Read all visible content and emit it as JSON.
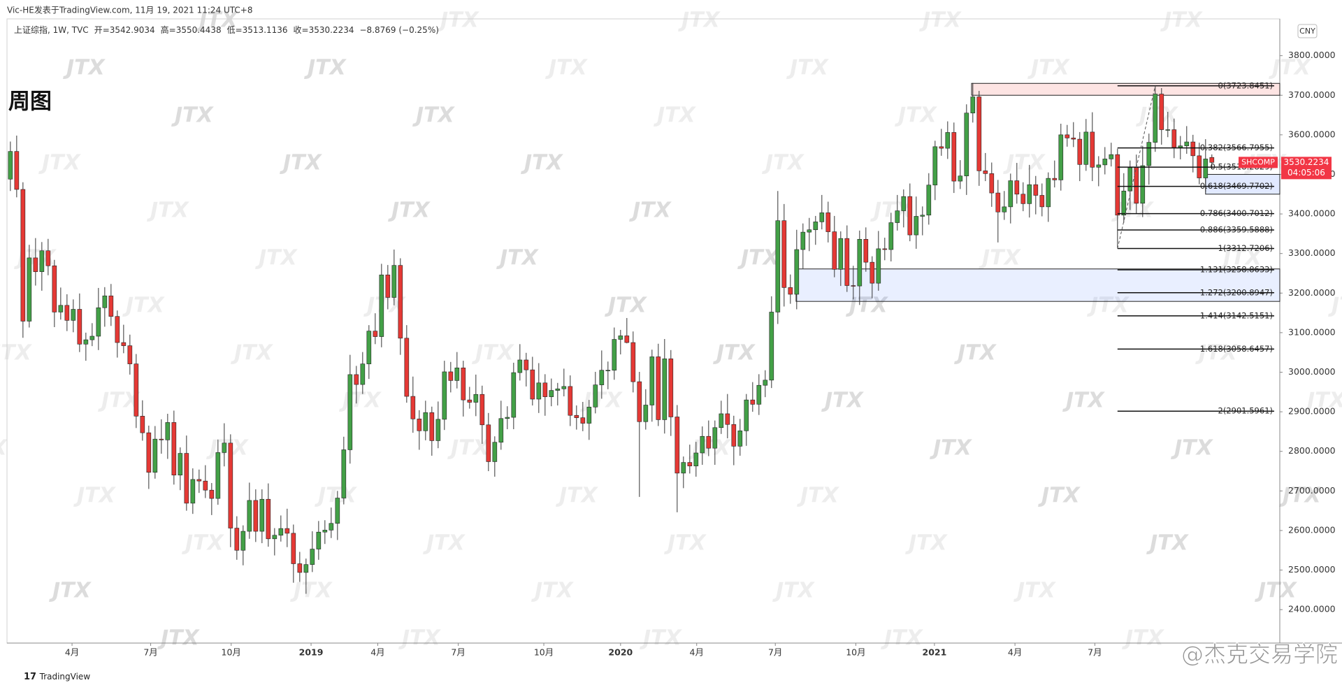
{
  "header": "Vic-HE发表于TradingView.com, 11月 19, 2021 11:24 UTC+8",
  "watermark": "JTX",
  "brand": "TradingView",
  "credit": "@杰克交易学院",
  "chart_data": {
    "type": "candlestick",
    "title": "周图",
    "legend": [
      "上证综指, 1W, TVC",
      "开=3542.9034",
      "高=3550.4438",
      "低=3513.1136",
      "收=3530.2234",
      "−8.8769 (−0.25%)"
    ],
    "currency": "CNY",
    "ticker": "SHCOMP",
    "last_price_label": "3530.2234",
    "countdown": "04:05:06",
    "up_color": "#43a047",
    "down_color": "#e53935",
    "wick_color": "#333333",
    "ohlc": [
      [
        3488,
        3583,
        3458,
        3558
      ],
      [
        3558,
        3598,
        3442,
        3462
      ],
      [
        3462,
        3480,
        3087,
        3129
      ],
      [
        3129,
        3322,
        3113,
        3289
      ],
      [
        3289,
        3339,
        3219,
        3254
      ],
      [
        3254,
        3329,
        3206,
        3307
      ],
      [
        3307,
        3337,
        3245,
        3269
      ],
      [
        3269,
        3284,
        3114,
        3152
      ],
      [
        3152,
        3214,
        3133,
        3169
      ],
      [
        3169,
        3197,
        3104,
        3131
      ],
      [
        3131,
        3184,
        3101,
        3159
      ],
      [
        3159,
        3199,
        3051,
        3071
      ],
      [
        3071,
        3100,
        3029,
        3082
      ],
      [
        3082,
        3124,
        3066,
        3091
      ],
      [
        3091,
        3213,
        3056,
        3163
      ],
      [
        3163,
        3215,
        3115,
        3193
      ],
      [
        3193,
        3223,
        3117,
        3141
      ],
      [
        3141,
        3156,
        3037,
        3075
      ],
      [
        3075,
        3120,
        3048,
        3067
      ],
      [
        3067,
        3095,
        2994,
        3021
      ],
      [
        3021,
        3046,
        2859,
        2889
      ],
      [
        2889,
        2929,
        2827,
        2847
      ],
      [
        2847,
        2865,
        2705,
        2747
      ],
      [
        2747,
        2864,
        2731,
        2831
      ],
      [
        2831,
        2881,
        2794,
        2829
      ],
      [
        2829,
        2895,
        2781,
        2873
      ],
      [
        2873,
        2903,
        2716,
        2740
      ],
      [
        2740,
        2810,
        2702,
        2795
      ],
      [
        2795,
        2840,
        2650,
        2669
      ],
      [
        2669,
        2757,
        2642,
        2729
      ],
      [
        2729,
        2754,
        2695,
        2725
      ],
      [
        2725,
        2765,
        2682,
        2702
      ],
      [
        2702,
        2720,
        2639,
        2681
      ],
      [
        2681,
        2830,
        2665,
        2797
      ],
      [
        2797,
        2871,
        2762,
        2821
      ],
      [
        2821,
        2843,
        2558,
        2606
      ],
      [
        2606,
        2636,
        2526,
        2550
      ],
      [
        2550,
        2613,
        2512,
        2598
      ],
      [
        2598,
        2721,
        2579,
        2676
      ],
      [
        2676,
        2704,
        2571,
        2598
      ],
      [
        2598,
        2704,
        2568,
        2679
      ],
      [
        2679,
        2719,
        2559,
        2579
      ],
      [
        2579,
        2606,
        2537,
        2588
      ],
      [
        2588,
        2638,
        2572,
        2605
      ],
      [
        2605,
        2655,
        2558,
        2593
      ],
      [
        2593,
        2615,
        2468,
        2516
      ],
      [
        2516,
        2546,
        2470,
        2494
      ],
      [
        2494,
        2529,
        2440,
        2514
      ],
      [
        2514,
        2598,
        2495,
        2553
      ],
      [
        2553,
        2624,
        2526,
        2596
      ],
      [
        2596,
        2626,
        2566,
        2601
      ],
      [
        2601,
        2658,
        2581,
        2618
      ],
      [
        2618,
        2700,
        2576,
        2682
      ],
      [
        2682,
        2837,
        2666,
        2804
      ],
      [
        2804,
        3044,
        2769,
        2994
      ],
      [
        2994,
        3016,
        2921,
        2969
      ],
      [
        2969,
        3051,
        2945,
        3021
      ],
      [
        3021,
        3119,
        2983,
        3104
      ],
      [
        3104,
        3149,
        3071,
        3090
      ],
      [
        3090,
        3274,
        3063,
        3246
      ],
      [
        3246,
        3271,
        3159,
        3189
      ],
      [
        3189,
        3310,
        3169,
        3270
      ],
      [
        3270,
        3288,
        3044,
        3086
      ],
      [
        3086,
        3119,
        2923,
        2939
      ],
      [
        2939,
        2989,
        2847,
        2882
      ],
      [
        2882,
        2904,
        2804,
        2852
      ],
      [
        2852,
        2928,
        2828,
        2898
      ],
      [
        2898,
        2913,
        2789,
        2827
      ],
      [
        2827,
        2926,
        2808,
        2881
      ],
      [
        2881,
        3029,
        2854,
        3001
      ],
      [
        3001,
        3026,
        2949,
        2979
      ],
      [
        2979,
        3051,
        2959,
        3011
      ],
      [
        3011,
        3029,
        2888,
        2930
      ],
      [
        2930,
        2963,
        2908,
        2924
      ],
      [
        2924,
        2994,
        2889,
        2944
      ],
      [
        2944,
        2966,
        2819,
        2867
      ],
      [
        2867,
        2897,
        2750,
        2774
      ],
      [
        2774,
        2838,
        2736,
        2823
      ],
      [
        2823,
        2928,
        2804,
        2883
      ],
      [
        2883,
        2914,
        2856,
        2886
      ],
      [
        2886,
        3024,
        2856,
        2999
      ],
      [
        2999,
        3071,
        2979,
        3031
      ],
      [
        3031,
        3049,
        2964,
        3006
      ],
      [
        3006,
        3039,
        2916,
        2932
      ],
      [
        2932,
        3023,
        2897,
        2973
      ],
      [
        2973,
        2995,
        2890,
        2938
      ],
      [
        2938,
        2984,
        2914,
        2954
      ],
      [
        2954,
        2973,
        2916,
        2958
      ],
      [
        2958,
        3009,
        2939,
        2964
      ],
      [
        2964,
        2992,
        2864,
        2891
      ],
      [
        2891,
        2916,
        2855,
        2885
      ],
      [
        2885,
        2925,
        2851,
        2871
      ],
      [
        2871,
        2930,
        2829,
        2912
      ],
      [
        2912,
        3001,
        2896,
        2968
      ],
      [
        2968,
        3055,
        2933,
        3005
      ],
      [
        3005,
        3027,
        2957,
        3005
      ],
      [
        3005,
        3113,
        2981,
        3083
      ],
      [
        3083,
        3107,
        3045,
        3092
      ],
      [
        3092,
        3137,
        3073,
        3075
      ],
      [
        3075,
        3103,
        2949,
        2976
      ],
      [
        2976,
        3001,
        2685,
        2875
      ],
      [
        2875,
        2957,
        2855,
        2917
      ],
      [
        2917,
        3057,
        2875,
        3039
      ],
      [
        3039,
        3072,
        2864,
        2880
      ],
      [
        2880,
        3084,
        2845,
        3034
      ],
      [
        3034,
        3056,
        2839,
        2887
      ],
      [
        2887,
        2917,
        2646,
        2745
      ],
      [
        2745,
        2787,
        2707,
        2772
      ],
      [
        2772,
        2817,
        2744,
        2763
      ],
      [
        2763,
        2824,
        2736,
        2796
      ],
      [
        2796,
        2863,
        2766,
        2838
      ],
      [
        2838,
        2878,
        2788,
        2808
      ],
      [
        2808,
        2878,
        2766,
        2860
      ],
      [
        2860,
        2928,
        2844,
        2895
      ],
      [
        2895,
        2945,
        2833,
        2868
      ],
      [
        2868,
        2890,
        2765,
        2813
      ],
      [
        2813,
        2882,
        2789,
        2852
      ],
      [
        2852,
        2945,
        2814,
        2930
      ],
      [
        2930,
        2975,
        2900,
        2919
      ],
      [
        2919,
        2995,
        2892,
        2967
      ],
      [
        2967,
        3005,
        2937,
        2980
      ],
      [
        2980,
        3192,
        2960,
        3152
      ],
      [
        3152,
        3458,
        3122,
        3383
      ],
      [
        3383,
        3425,
        3166,
        3214
      ],
      [
        3214,
        3247,
        3173,
        3197
      ],
      [
        3197,
        3360,
        3159,
        3310
      ],
      [
        3310,
        3376,
        3262,
        3354
      ],
      [
        3354,
        3390,
        3306,
        3360
      ],
      [
        3360,
        3395,
        3322,
        3380
      ],
      [
        3380,
        3448,
        3361,
        3403
      ],
      [
        3403,
        3431,
        3328,
        3355
      ],
      [
        3355,
        3395,
        3240,
        3260
      ],
      [
        3260,
        3356,
        3218,
        3338
      ],
      [
        3338,
        3371,
        3203,
        3219
      ],
      [
        3219,
        3269,
        3184,
        3218
      ],
      [
        3218,
        3358,
        3170,
        3336
      ],
      [
        3336,
        3366,
        3254,
        3278
      ],
      [
        3278,
        3293,
        3187,
        3225
      ],
      [
        3225,
        3357,
        3206,
        3312
      ],
      [
        3312,
        3340,
        3283,
        3310
      ],
      [
        3310,
        3403,
        3280,
        3378
      ],
      [
        3378,
        3448,
        3358,
        3408
      ],
      [
        3408,
        3462,
        3366,
        3444
      ],
      [
        3444,
        3477,
        3331,
        3347
      ],
      [
        3347,
        3444,
        3312,
        3394
      ],
      [
        3394,
        3419,
        3346,
        3397
      ],
      [
        3397,
        3503,
        3373,
        3473
      ],
      [
        3473,
        3585,
        3435,
        3570
      ],
      [
        3570,
        3615,
        3547,
        3566
      ],
      [
        3566,
        3634,
        3539,
        3606
      ],
      [
        3606,
        3631,
        3453,
        3483
      ],
      [
        3483,
        3536,
        3463,
        3496
      ],
      [
        3496,
        3677,
        3448,
        3655
      ],
      [
        3655,
        3731,
        3631,
        3696
      ],
      [
        3696,
        3711,
        3471,
        3509
      ],
      [
        3509,
        3554,
        3483,
        3502
      ],
      [
        3502,
        3530,
        3418,
        3453
      ],
      [
        3453,
        3486,
        3328,
        3405
      ],
      [
        3405,
        3458,
        3385,
        3418
      ],
      [
        3418,
        3502,
        3376,
        3484
      ],
      [
        3484,
        3529,
        3426,
        3450
      ],
      [
        3450,
        3480,
        3407,
        3426
      ],
      [
        3426,
        3524,
        3391,
        3474
      ],
      [
        3474,
        3496,
        3399,
        3447
      ],
      [
        3447,
        3477,
        3394,
        3418
      ],
      [
        3418,
        3505,
        3380,
        3490
      ],
      [
        3490,
        3535,
        3467,
        3486
      ],
      [
        3486,
        3628,
        3459,
        3600
      ],
      [
        3600,
        3625,
        3570,
        3592
      ],
      [
        3592,
        3632,
        3569,
        3589
      ],
      [
        3589,
        3607,
        3483,
        3525
      ],
      [
        3525,
        3640,
        3509,
        3607
      ],
      [
        3607,
        3657,
        3483,
        3518
      ],
      [
        3518,
        3546,
        3470,
        3524
      ],
      [
        3524,
        3569,
        3500,
        3539
      ],
      [
        3539,
        3580,
        3520,
        3550
      ],
      [
        3550,
        3565,
        3313,
        3397
      ],
      [
        3397,
        3503,
        3378,
        3458
      ],
      [
        3458,
        3535,
        3410,
        3517
      ],
      [
        3517,
        3550,
        3400,
        3427
      ],
      [
        3427,
        3572,
        3392,
        3522
      ],
      [
        3522,
        3603,
        3474,
        3581
      ],
      [
        3581,
        3724,
        3557,
        3703
      ],
      [
        3703,
        3718,
        3575,
        3613
      ],
      [
        3613,
        3658,
        3594,
        3613
      ],
      [
        3613,
        3641,
        3541,
        3568
      ],
      [
        3568,
        3597,
        3538,
        3572
      ],
      [
        3572,
        3622,
        3552,
        3582
      ],
      [
        3582,
        3600,
        3505,
        3547
      ],
      [
        3547,
        3580,
        3475,
        3491
      ],
      [
        3491,
        3589,
        3456,
        3539
      ],
      [
        3542.9034,
        3550.4438,
        3513.1136,
        3530.2234
      ]
    ],
    "xlim": [
      -0.54,
      201.8
    ],
    "xticks": [
      {
        "value": 9.8,
        "label": "4月"
      },
      {
        "value": 22.3,
        "label": "7月"
      },
      {
        "value": 35.1,
        "label": "10月"
      },
      {
        "value": 47.8,
        "label": "2019"
      },
      {
        "value": 58.4,
        "label": "4月"
      },
      {
        "value": 71.2,
        "label": "7月"
      },
      {
        "value": 84.8,
        "label": "10月"
      },
      {
        "value": 97,
        "label": "2020"
      },
      {
        "value": 109.1,
        "label": "4月"
      },
      {
        "value": 121.6,
        "label": "7月"
      },
      {
        "value": 134.4,
        "label": "10月"
      },
      {
        "value": 146.9,
        "label": "2021"
      },
      {
        "value": 159.7,
        "label": "4月"
      },
      {
        "value": 172.4,
        "label": "7月"
      }
    ],
    "ylim": [
      2315.5,
      3893
    ],
    "yticks": [
      {
        "value": 2400,
        "label": "2400.0000"
      },
      {
        "value": 2500,
        "label": "2500.0000"
      },
      {
        "value": 2600,
        "label": "2600.0000"
      },
      {
        "value": 2700,
        "label": "2700.0000"
      },
      {
        "value": 2800,
        "label": "2800.0000"
      },
      {
        "value": 2900,
        "label": "2900.0000"
      },
      {
        "value": 3000,
        "label": "3000.0000"
      },
      {
        "value": 3100,
        "label": "3100.0000"
      },
      {
        "value": 3200,
        "label": "3200.0000"
      },
      {
        "value": 3300,
        "label": "3300.0000"
      },
      {
        "value": 3400,
        "label": "3400.0000"
      },
      {
        "value": 3500,
        "label": "3500.0000"
      },
      {
        "value": 3600,
        "label": "3600.0000"
      },
      {
        "value": 3700,
        "label": "3700.0000"
      },
      {
        "value": 3800,
        "label": "3800.0000"
      }
    ],
    "fib": {
      "anchor_x": [
        176,
        182
      ],
      "levels": [
        {
          "value": 3723.8451,
          "label": "0(3723.8451)"
        },
        {
          "value": 3566.7955,
          "label": "0.382(3566.7955)"
        },
        {
          "value": 3518.2829,
          "label": "0.5(3518.2829)"
        },
        {
          "value": 3469.7702,
          "label": "0.618(3469.7702)"
        },
        {
          "value": 3400.7012,
          "label": "0.786(3400.7012)"
        },
        {
          "value": 3359.5888,
          "label": "0.886(3359.5888)"
        },
        {
          "value": 3312.7206,
          "label": "1(3312.7206)"
        },
        {
          "value": 3258.8633,
          "label": "1.131(3258.8633)"
        },
        {
          "value": 3200.8947,
          "label": "1.272(3200.8947)"
        },
        {
          "value": 3142.5151,
          "label": "1.414(3142.5151)"
        },
        {
          "value": 3058.6457,
          "label": "1.618(3058.6457)"
        },
        {
          "value": 2901.5961,
          "label": "2(2901.5961)"
        }
      ]
    },
    "zones": [
      {
        "x0": 152.8,
        "low": 3700,
        "high": 3730,
        "color": "rgba(244,67,54,0.14)"
      },
      {
        "x0": 124.9,
        "low": 3179,
        "high": 3261,
        "color": "rgba(41,98,255,0.10)"
      },
      {
        "x0": 190,
        "low": 3450,
        "high": 3500,
        "color": "rgba(41,98,255,0.14)"
      }
    ]
  }
}
